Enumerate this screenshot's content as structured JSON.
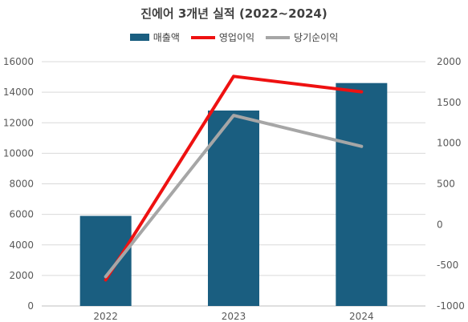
{
  "chart_data": {
    "type": "bar",
    "title": "진에어 3개년 실적 (2022~2024)",
    "categories": [
      "2022",
      "2023",
      "2024"
    ],
    "series": [
      {
        "name": "매출액",
        "type": "bar",
        "axis": "left",
        "color": "#1a5e80",
        "values": [
          5900,
          12800,
          14600
        ]
      },
      {
        "name": "영업이익",
        "type": "line",
        "axis": "right",
        "color": "#ee1111",
        "values": [
          -680,
          1820,
          1630
        ]
      },
      {
        "name": "당기순이익",
        "type": "line",
        "axis": "right",
        "color": "#a6a6a6",
        "values": [
          -640,
          1340,
          960
        ]
      }
    ],
    "ylim_left": [
      0,
      16000
    ],
    "yticks_left": [
      "0",
      "2000",
      "4000",
      "6000",
      "8000",
      "10000",
      "12000",
      "14000",
      "16000"
    ],
    "ylim_right": [
      -1000,
      2000
    ],
    "yticks_right": [
      "-1000",
      "-500",
      "0",
      "500",
      "1000",
      "1500",
      "2000"
    ],
    "grid": true,
    "legend_position": "top"
  }
}
